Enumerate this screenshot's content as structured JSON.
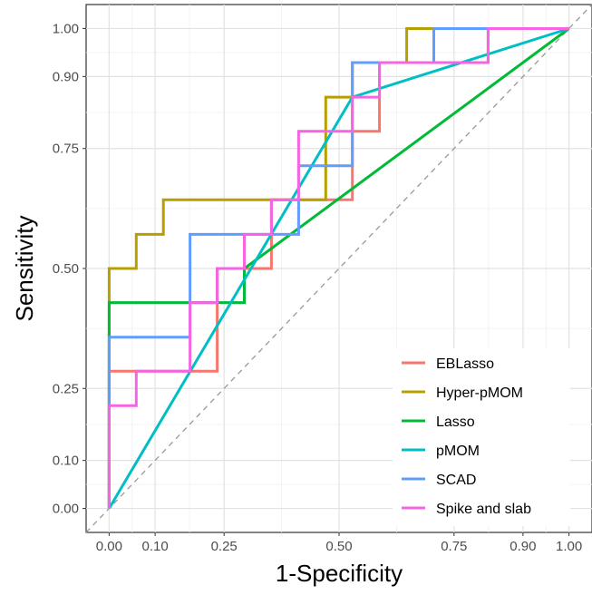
{
  "chart_data": {
    "type": "line",
    "title": "",
    "xlabel": "1-Specificity",
    "ylabel": "Sensitivity",
    "xlim": [
      -0.05,
      1.05
    ],
    "ylim": [
      -0.05,
      1.05
    ],
    "x_ticks": [
      0.0,
      0.1,
      0.25,
      0.5,
      0.75,
      0.9,
      1.0
    ],
    "x_tick_labels": [
      "0.00",
      "0.10",
      "0.25",
      "0.50",
      "0.75",
      "0.90",
      "1.00"
    ],
    "y_ticks": [
      0.0,
      0.1,
      0.25,
      0.5,
      0.75,
      0.9,
      1.0
    ],
    "y_tick_labels": [
      "0.00",
      "0.10",
      "0.25",
      "0.50",
      "0.75",
      "0.90",
      "1.00"
    ],
    "grid": true,
    "reference_line": {
      "x": [
        0,
        1
      ],
      "y": [
        0,
        1
      ],
      "style": "dashed",
      "color": "#999999"
    },
    "legend_position": "bottom-right",
    "series": [
      {
        "name": "EBLasso",
        "color": "#F8766D",
        "x": [
          0,
          0,
          0.176,
          0.176,
          0.235,
          0.235,
          0.294,
          0.294,
          0.353,
          0.353,
          0.412,
          0.412,
          0.529,
          0.529,
          0.588,
          0.588,
          0.647,
          0.647,
          0.706,
          0.706,
          0.824,
          0.824,
          1.0
        ],
        "y": [
          0,
          0.286,
          0.286,
          0.286,
          0.286,
          0.5,
          0.5,
          0.5,
          0.5,
          0.643,
          0.643,
          0.643,
          0.643,
          0.786,
          0.786,
          0.929,
          0.929,
          0.929,
          0.929,
          0.929,
          0.929,
          1.0,
          1.0
        ]
      },
      {
        "name": "Hyper-pMOM",
        "color": "#B79F00",
        "x": [
          0,
          0,
          0.059,
          0.059,
          0.118,
          0.118,
          0.471,
          0.471,
          0.529,
          0.529,
          0.647,
          0.647,
          1.0
        ],
        "y": [
          0,
          0.5,
          0.5,
          0.571,
          0.571,
          0.643,
          0.643,
          0.857,
          0.857,
          0.929,
          0.929,
          1.0,
          1.0
        ]
      },
      {
        "name": "Lasso",
        "color": "#00BA38",
        "x": [
          0,
          0,
          0.294,
          0.294,
          1.0
        ],
        "y": [
          0,
          0.429,
          0.429,
          0.5,
          1.0
        ]
      },
      {
        "name": "pMOM",
        "color": "#00BFC4",
        "x": [
          0,
          0.529,
          0.529,
          1.0
        ],
        "y": [
          0,
          0.857,
          0.857,
          1.0
        ]
      },
      {
        "name": "SCAD",
        "color": "#619CFF",
        "x": [
          0,
          0,
          0.176,
          0.176,
          0.412,
          0.412,
          0.529,
          0.529,
          0.706,
          0.706,
          1.0
        ],
        "y": [
          0,
          0.357,
          0.357,
          0.571,
          0.571,
          0.714,
          0.714,
          0.929,
          0.929,
          1.0,
          1.0
        ]
      },
      {
        "name": "Spike and slab",
        "color": "#F564E3",
        "x": [
          0,
          0,
          0.059,
          0.059,
          0.176,
          0.176,
          0.235,
          0.235,
          0.294,
          0.294,
          0.353,
          0.353,
          0.412,
          0.412,
          0.529,
          0.529,
          0.588,
          0.588,
          0.824,
          0.824,
          1.0
        ],
        "y": [
          0,
          0.214,
          0.214,
          0.286,
          0.286,
          0.429,
          0.429,
          0.5,
          0.5,
          0.571,
          0.571,
          0.643,
          0.643,
          0.786,
          0.786,
          0.857,
          0.857,
          0.929,
          0.929,
          1.0,
          1.0
        ]
      }
    ]
  }
}
